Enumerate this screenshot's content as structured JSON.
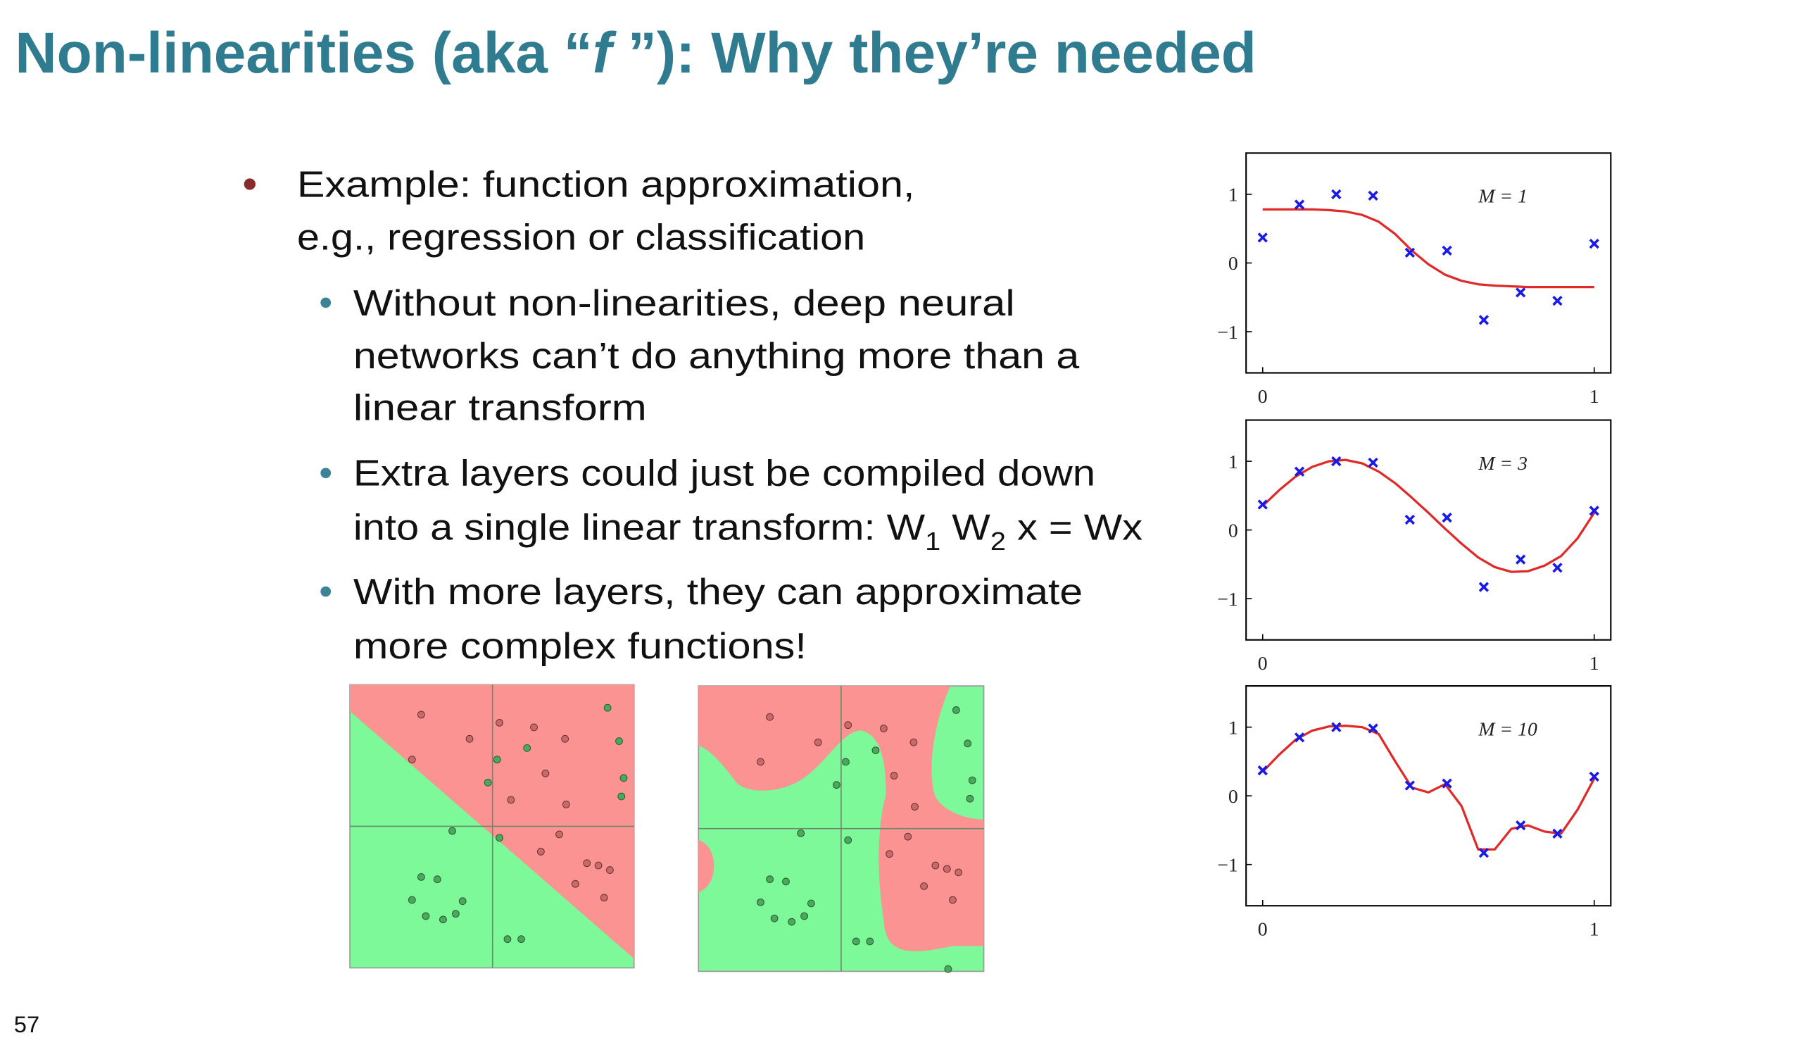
{
  "title": {
    "before": "Non-linearities (aka “",
    "italic": "f",
    "after": " ”): Why they’re needed"
  },
  "bullets": [
    {
      "lines": [
        "Example: function approximation,",
        "e.g., regression or classification"
      ],
      "subbullets": [
        {
          "lines": [
            "Without non-linearities, deep neural",
            "networks can’t do anything more than a",
            "linear transform"
          ]
        },
        {
          "lines": [
            "Extra layers could just be compiled down"
          ],
          "formula_line": [
            "into a single linear transform: W",
            "1",
            " W",
            "2",
            " x = Wx"
          ]
        },
        {
          "lines": [
            "With more layers, they can approximate",
            "more complex functions!"
          ]
        }
      ]
    }
  ],
  "page_number": "57",
  "figures": [
    {
      "type": "line",
      "annotation": "M = 1",
      "xlim": [
        -0.05,
        1.05
      ],
      "ylim": [
        -1.6,
        1.6
      ],
      "xticks": [
        0,
        1
      ],
      "yticks": [
        {
          "value": -1,
          "label": "−1"
        },
        0,
        1
      ],
      "points": {
        "color": "#1a1ae6",
        "x": [
          0,
          0.111,
          0.222,
          0.333,
          0.444,
          0.556,
          0.667,
          0.778,
          0.889,
          1
        ],
        "values": [
          0.37,
          0.85,
          1.0,
          0.98,
          0.15,
          0.18,
          -0.83,
          -0.43,
          -0.55,
          0.28
        ]
      },
      "curve": {
        "color": "#e02a2a",
        "x": [
          0,
          0.05,
          0.1,
          0.15,
          0.2,
          0.25,
          0.3,
          0.35,
          0.4,
          0.45,
          0.5,
          0.55,
          0.6,
          0.65,
          0.7,
          0.75,
          0.8,
          0.85,
          0.9,
          0.95,
          1
        ],
        "values": [
          0.78,
          0.78,
          0.78,
          0.78,
          0.77,
          0.75,
          0.7,
          0.6,
          0.42,
          0.18,
          -0.02,
          -0.17,
          -0.26,
          -0.31,
          -0.33,
          -0.34,
          -0.35,
          -0.35,
          -0.35,
          -0.35,
          -0.35
        ]
      }
    },
    {
      "type": "line",
      "annotation": "M = 3",
      "xlim": [
        -0.05,
        1.05
      ],
      "ylim": [
        -1.6,
        1.6
      ],
      "xticks": [
        0,
        1
      ],
      "yticks": [
        {
          "value": -1,
          "label": "−1"
        },
        0,
        1
      ],
      "points": {
        "color": "#1a1ae6",
        "x": [
          0,
          0.111,
          0.222,
          0.333,
          0.444,
          0.556,
          0.667,
          0.778,
          0.889,
          1
        ],
        "values": [
          0.37,
          0.85,
          1.0,
          0.98,
          0.15,
          0.18,
          -0.83,
          -0.43,
          -0.55,
          0.28
        ]
      },
      "curve": {
        "color": "#e02a2a",
        "x": [
          0,
          0.05,
          0.1,
          0.15,
          0.2,
          0.25,
          0.3,
          0.35,
          0.4,
          0.45,
          0.5,
          0.55,
          0.6,
          0.65,
          0.7,
          0.75,
          0.8,
          0.85,
          0.9,
          0.95,
          1
        ],
        "values": [
          0.35,
          0.58,
          0.78,
          0.92,
          1.0,
          1.02,
          0.97,
          0.85,
          0.68,
          0.47,
          0.25,
          0.02,
          -0.2,
          -0.4,
          -0.54,
          -0.61,
          -0.6,
          -0.52,
          -0.38,
          -0.12,
          0.25
        ]
      }
    },
    {
      "type": "line",
      "annotation": "M = 10",
      "xlim": [
        -0.05,
        1.05
      ],
      "ylim": [
        -1.6,
        1.6
      ],
      "xticks": [
        0,
        1
      ],
      "yticks": [
        {
          "value": -1,
          "label": "−1"
        },
        0,
        1
      ],
      "points": {
        "color": "#1a1ae6",
        "x": [
          0,
          0.111,
          0.222,
          0.333,
          0.444,
          0.556,
          0.667,
          0.778,
          0.889,
          1
        ],
        "values": [
          0.37,
          0.85,
          1.0,
          0.98,
          0.15,
          0.18,
          -0.83,
          -0.43,
          -0.55,
          0.28
        ]
      },
      "curve": {
        "color": "#e02a2a",
        "x": [
          0,
          0.05,
          0.1,
          0.15,
          0.2,
          0.25,
          0.3,
          0.35,
          0.4,
          0.45,
          0.5,
          0.55,
          0.6,
          0.65,
          0.7,
          0.75,
          0.8,
          0.85,
          0.9,
          0.95,
          1
        ],
        "values": [
          0.35,
          0.6,
          0.82,
          0.95,
          1.01,
          1.02,
          1.0,
          0.9,
          0.5,
          0.12,
          0.05,
          0.17,
          -0.15,
          -0.78,
          -0.78,
          -0.48,
          -0.43,
          -0.52,
          -0.55,
          -0.2,
          0.25
        ]
      }
    }
  ]
}
